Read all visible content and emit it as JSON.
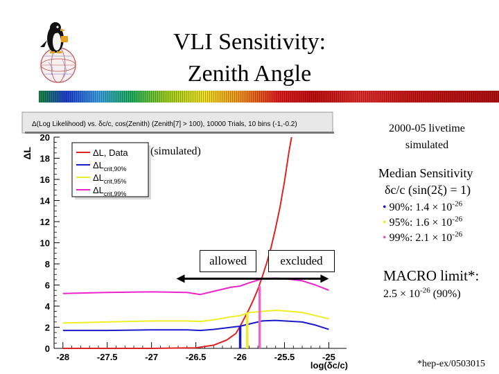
{
  "slide": {
    "title_line1": "VLI Sensitivity:",
    "title_line2": "Zenith Angle",
    "livetime_line1": "2000-05 livetime",
    "livetime_line2": "simulated",
    "simulated_label": "(simulated)",
    "median_title": "Median Sensitivity",
    "median_formula": "δc/c (sin(2ξ) = 1)",
    "results": [
      {
        "bullet": "•",
        "prefix": "90%: 1.4 × 10",
        "exp": "-26",
        "color": "#1a1acc"
      },
      {
        "bullet": "•",
        "prefix": "95%: 1.6 × 10",
        "exp": "-26",
        "color": "#eeee22"
      },
      {
        "bullet": "•",
        "prefix": "99%: 2.1 × 10",
        "exp": "-26",
        "color": "#e060c0"
      }
    ],
    "macro_title": "MACRO limit*:",
    "macro_value_prefix": "2.5 × 10",
    "macro_value_exp": "-26",
    "macro_value_suffix": " (90%)",
    "allowed_label": "allowed",
    "excluded_label": "excluded",
    "footnote": "*hep-ex/0503015"
  },
  "chart_data": {
    "type": "line",
    "title": "Δ(Log Likelihood) vs. δc/c, cos(Zenith) (Zenith[7] > 100), 10000 Trials, 10 bins (-1,-0.2)",
    "xlabel": "log(δc/c)",
    "ylabel": "ΔL",
    "xlim": [
      -28.1,
      -24.8
    ],
    "ylim": [
      0,
      20
    ],
    "xticks": [
      -28,
      -27.5,
      -27,
      -26.5,
      -26,
      -25.5,
      -25
    ],
    "xtick_labels": [
      "-28",
      "-27.5",
      "-27",
      "-26.5",
      "-26",
      "-25.5",
      "-25"
    ],
    "yticks": [
      0,
      2,
      4,
      6,
      8,
      10,
      12,
      14,
      16,
      18,
      20
    ],
    "ytick_labels": [
      "0",
      "2",
      "4",
      "6",
      "8",
      "10",
      "12",
      "14",
      "16",
      "18",
      "20"
    ],
    "legend": [
      {
        "main": "ΔL, Data",
        "sub": "",
        "color": "#dd2222"
      },
      {
        "main": "ΔL",
        "sub": "crit,90%",
        "color": "#1a1acc"
      },
      {
        "main": "ΔL",
        "sub": "crit,95%",
        "color": "#eeee22"
      },
      {
        "main": "ΔL",
        "sub": "crit,99%",
        "color": "#ee22cc"
      }
    ],
    "series": [
      {
        "name": "ΔL, Data",
        "color": "#dd2222",
        "x": [
          -28,
          -27,
          -26.5,
          -26.3,
          -26.15,
          -26.05,
          -26.0,
          -25.95,
          -25.9,
          -25.85,
          -25.8,
          -25.75,
          -25.7,
          -25.65,
          -25.6,
          -25.55,
          -25.5,
          -25.45,
          -25.42
        ],
        "y": [
          0,
          0,
          0.05,
          0.3,
          0.8,
          1.4,
          2.1,
          2.9,
          3.7,
          4.6,
          5.6,
          6.8,
          8.1,
          9.6,
          11.4,
          13.4,
          15.8,
          18.6,
          20
        ]
      },
      {
        "name": "ΔL crit,90%",
        "color": "#1a1acc",
        "x": [
          -28,
          -27.5,
          -27,
          -26.6,
          -26.45,
          -26.3,
          -26.1,
          -26.0,
          -25.9,
          -25.75,
          -25.6,
          -25.5,
          -25.3,
          -25.15,
          -25.0
        ],
        "y": [
          1.7,
          1.7,
          1.75,
          1.75,
          1.7,
          1.8,
          2.0,
          2.1,
          2.3,
          2.6,
          2.65,
          2.6,
          2.5,
          2.2,
          1.8
        ]
      },
      {
        "name": "ΔL crit,95%",
        "color": "#eeee22",
        "x": [
          -28,
          -27.5,
          -27,
          -26.6,
          -26.45,
          -26.3,
          -26.1,
          -26.0,
          -25.9,
          -25.75,
          -25.6,
          -25.5,
          -25.3,
          -25.15,
          -25.0
        ],
        "y": [
          2.4,
          2.5,
          2.6,
          2.6,
          2.55,
          2.7,
          3.0,
          3.1,
          3.4,
          3.5,
          3.6,
          3.55,
          3.4,
          3.1,
          2.8
        ]
      },
      {
        "name": "ΔL crit,99%",
        "color": "#ee22cc",
        "x": [
          -28,
          -27.5,
          -27,
          -26.6,
          -26.45,
          -26.3,
          -26.1,
          -26.0,
          -25.9,
          -25.75,
          -25.6,
          -25.5,
          -25.3,
          -25.15,
          -25.0
        ],
        "y": [
          5.2,
          5.3,
          5.35,
          5.3,
          5.1,
          5.4,
          5.8,
          5.9,
          6.2,
          6.6,
          6.65,
          6.6,
          6.4,
          6.0,
          5.5
        ]
      }
    ],
    "vertical_markers": [
      {
        "name": "90% sensitivity",
        "x": -26.0,
        "ymax": 2.1,
        "color": "#1a1acc"
      },
      {
        "name": "95% sensitivity",
        "x": -25.92,
        "ymax": 3.3,
        "color": "#eeee22"
      },
      {
        "name": "99% sensitivity",
        "x": -25.78,
        "ymax": 5.9,
        "color": "#ee66cc"
      }
    ],
    "arrow_y": 6.6,
    "arrow_x_range": [
      -26.72,
      -25.0
    ]
  }
}
